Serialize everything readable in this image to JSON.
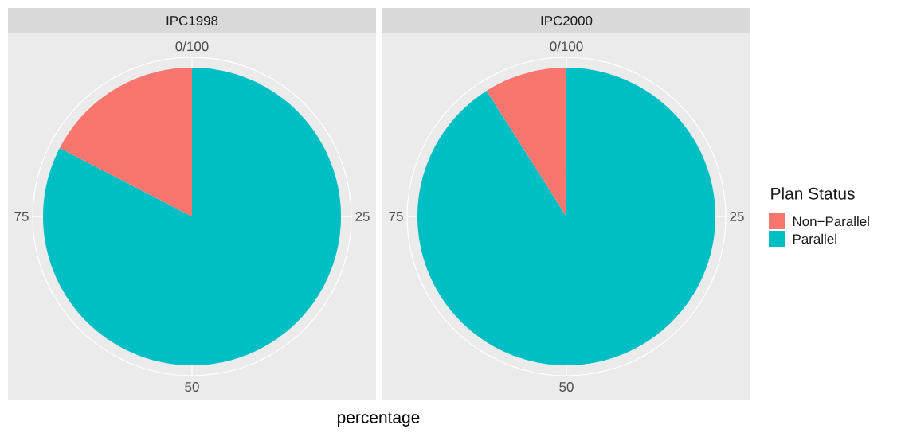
{
  "chart_data": [
    {
      "type": "pie",
      "title": "IPC1998",
      "xlabel": "percentage",
      "categories": [
        "Non−Parallel",
        "Parallel"
      ],
      "values": [
        17.4,
        82.6
      ],
      "colors": [
        "#f8766d",
        "#00bfc4"
      ],
      "annotations": [
        "0/100",
        "25",
        "50",
        "75"
      ],
      "grid": true,
      "legend": "right",
      "legend_title": "Plan Status"
    },
    {
      "type": "pie",
      "title": "IPC2000",
      "categories": [
        null,
        null
      ],
      "values": [
        9,
        91
      ],
      "colors": [
        "#f8766d",
        "#00bfc4"
      ],
      "annotations": [
        "0/100",
        "25",
        "50",
        "75"
      ],
      "grid": true
    }
  ]
}
